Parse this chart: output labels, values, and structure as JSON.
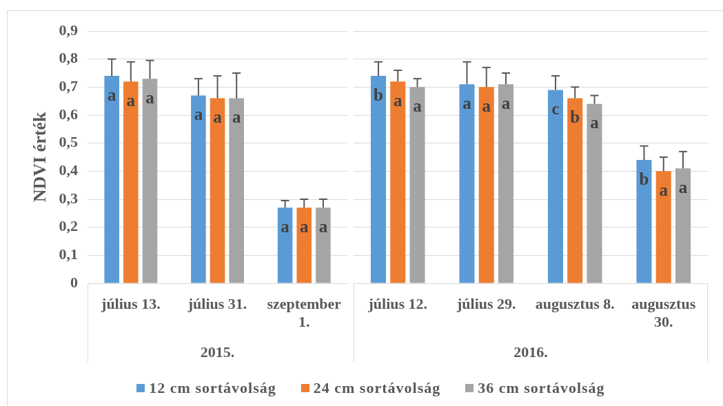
{
  "chart_data": [
    {
      "type": "bar",
      "ylabel": "NDVI érték",
      "xlabel": "2015.",
      "categories": [
        "július 13.",
        "július 31.",
        "szeptember 1."
      ],
      "series": [
        {
          "name": "12 cm sortávolság",
          "color": "#5b9bd5",
          "values": [
            0.74,
            0.67,
            0.27
          ],
          "errors": [
            [
              0.74,
              0.8
            ],
            [
              0.67,
              0.73
            ],
            [
              0.27,
              0.295
            ]
          ],
          "value_labels": [
            "a",
            "a",
            "a"
          ]
        },
        {
          "name": "24 cm sortávolság",
          "color": "#ed7d31",
          "values": [
            0.72,
            0.66,
            0.27
          ],
          "errors": [
            [
              0.72,
              0.79
            ],
            [
              0.66,
              0.74
            ],
            [
              0.27,
              0.3
            ]
          ],
          "value_labels": [
            "a",
            "a",
            "a"
          ]
        },
        {
          "name": "36 cm sortávolság",
          "color": "#a5a5a5",
          "values": [
            0.73,
            0.66,
            0.27
          ],
          "errors": [
            [
              0.73,
              0.795
            ],
            [
              0.66,
              0.75
            ],
            [
              0.27,
              0.3
            ]
          ],
          "value_labels": [
            "a",
            "a",
            "a"
          ]
        }
      ],
      "ylim": [
        0,
        0.9
      ],
      "yticks": [
        0,
        {
          "value": 0.1,
          "label": "0,1"
        },
        {
          "value": 0.2,
          "label": "0,2"
        },
        {
          "value": 0.3,
          "label": "0,3"
        },
        {
          "value": 0.4,
          "label": "0,4"
        },
        {
          "value": 0.5,
          "label": "0,5"
        },
        {
          "value": 0.6,
          "label": "0,6"
        },
        {
          "value": 0.7,
          "label": "0,7"
        },
        {
          "value": 0.8,
          "label": "0,8"
        },
        {
          "value": 0.9,
          "label": "0,9"
        }
      ],
      "grid": "y",
      "legend": "bottom"
    },
    {
      "type": "bar",
      "xlabel": "2016.",
      "categories": [
        "július 12.",
        "július 29.",
        "augusztus 8.",
        "augusztus 30."
      ],
      "series": [
        {
          "name": "12 cm sortávolság",
          "color": "#5b9bd5",
          "values": [
            0.74,
            0.71,
            0.69,
            0.44
          ],
          "errors": [
            [
              0.74,
              0.79
            ],
            [
              0.71,
              0.79
            ],
            [
              0.69,
              0.74
            ],
            [
              0.44,
              0.49
            ]
          ],
          "value_labels": [
            "b",
            "a",
            "c",
            "b"
          ]
        },
        {
          "name": "24 cm sortávolság",
          "color": "#ed7d31",
          "values": [
            0.72,
            0.7,
            0.66,
            0.4
          ],
          "errors": [
            [
              0.72,
              0.76
            ],
            [
              0.7,
              0.77
            ],
            [
              0.66,
              0.7
            ],
            [
              0.4,
              0.45
            ]
          ],
          "value_labels": [
            "a",
            "a",
            "b",
            "a"
          ]
        },
        {
          "name": "36 cm sortávolság",
          "color": "#a5a5a5",
          "values": [
            0.7,
            0.71,
            0.64,
            0.41
          ],
          "errors": [
            [
              0.7,
              0.73
            ],
            [
              0.71,
              0.75
            ],
            [
              0.64,
              0.67
            ],
            [
              0.41,
              0.47
            ]
          ],
          "value_labels": [
            "a",
            "a",
            "a",
            "a"
          ]
        }
      ],
      "ylim": [
        0,
        0.9
      ],
      "yticks": [
        0,
        0.1,
        0.2,
        0.3,
        0.4,
        0.5,
        0.6,
        0.7,
        0.8,
        0.9
      ],
      "grid": "y",
      "tick_labels": "x"
    }
  ]
}
